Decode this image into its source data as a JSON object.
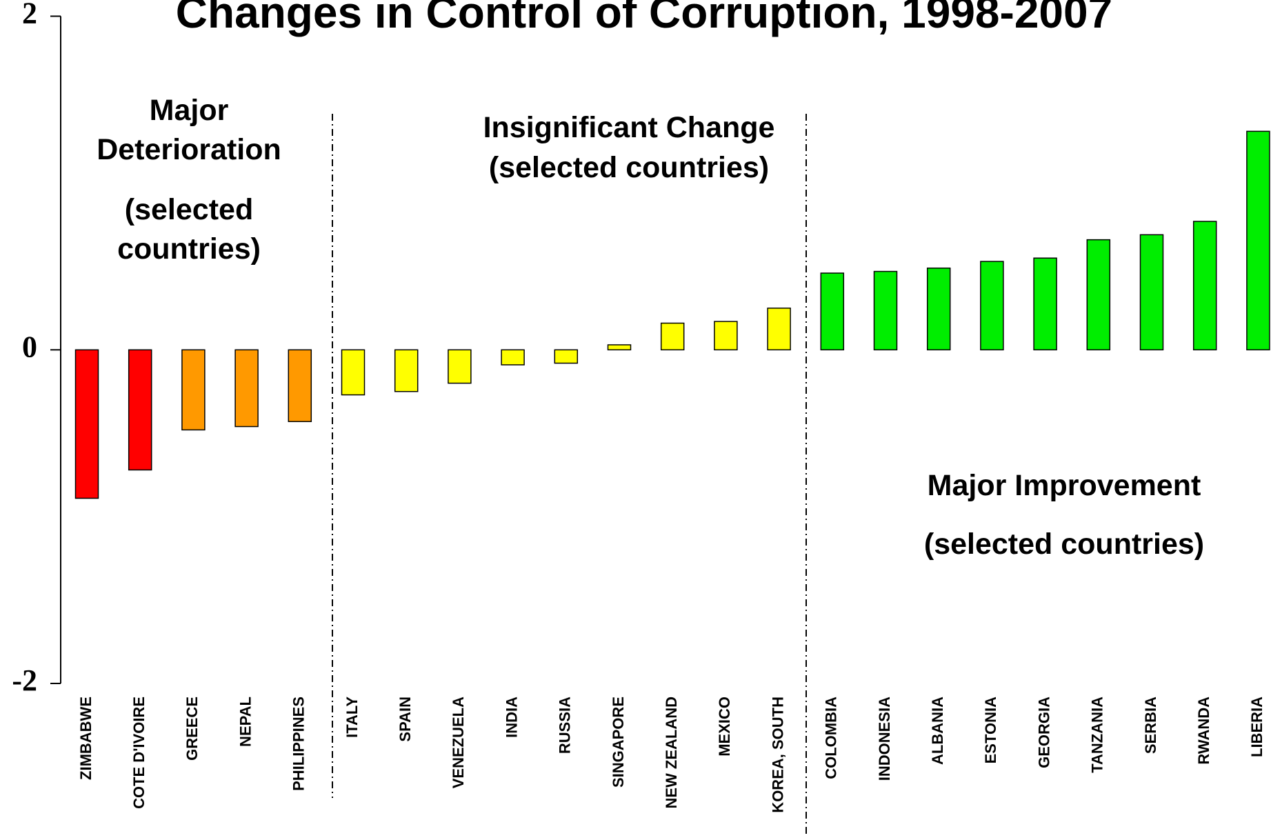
{
  "chart_data": {
    "type": "bar",
    "title": "Changes in Control of Corruption, 1998-2007",
    "categories": [
      "ZIMBABWE",
      "COTE D'IVOIRE",
      "GREECE",
      "NEPAL",
      "PHILIPPINES",
      "ITALY",
      "SPAIN",
      "VENEZUELA",
      "INDIA",
      "RUSSIA",
      "SINGAPORE",
      "NEW ZEALAND",
      "MEXICO",
      "KOREA, SOUTH",
      "COLOMBIA",
      "INDONESIA",
      "ALBANIA",
      "ESTONIA",
      "GEORGIA",
      "TANZANIA",
      "SERBIA",
      "RWANDA",
      "LIBERIA"
    ],
    "values": [
      -0.89,
      -0.72,
      -0.48,
      -0.46,
      -0.43,
      -0.27,
      -0.25,
      -0.2,
      -0.09,
      -0.08,
      0.03,
      0.16,
      0.17,
      0.25,
      0.46,
      0.47,
      0.49,
      0.53,
      0.55,
      0.66,
      0.69,
      0.77,
      1.31
    ],
    "colors": [
      "#ff0000",
      "#ff0000",
      "#ff9900",
      "#ff9900",
      "#ff9900",
      "#ffff00",
      "#ffff00",
      "#ffff00",
      "#ffff00",
      "#ffff00",
      "#ffff00",
      "#ffff00",
      "#ffff00",
      "#ffff00",
      "#00ee00",
      "#00ee00",
      "#00ee00",
      "#00ee00",
      "#00ee00",
      "#00ee00",
      "#00ee00",
      "#00ee00",
      "#00ee00"
    ],
    "ylim": [
      -2,
      2
    ],
    "yticks": [
      -2,
      0,
      2
    ],
    "annotations": [
      [
        "Major",
        "Deterioration",
        "(selected",
        "countries)"
      ],
      [
        "Insignificant Change",
        "(selected countries)"
      ],
      [
        "Major Improvement",
        "(selected countries)"
      ]
    ]
  }
}
